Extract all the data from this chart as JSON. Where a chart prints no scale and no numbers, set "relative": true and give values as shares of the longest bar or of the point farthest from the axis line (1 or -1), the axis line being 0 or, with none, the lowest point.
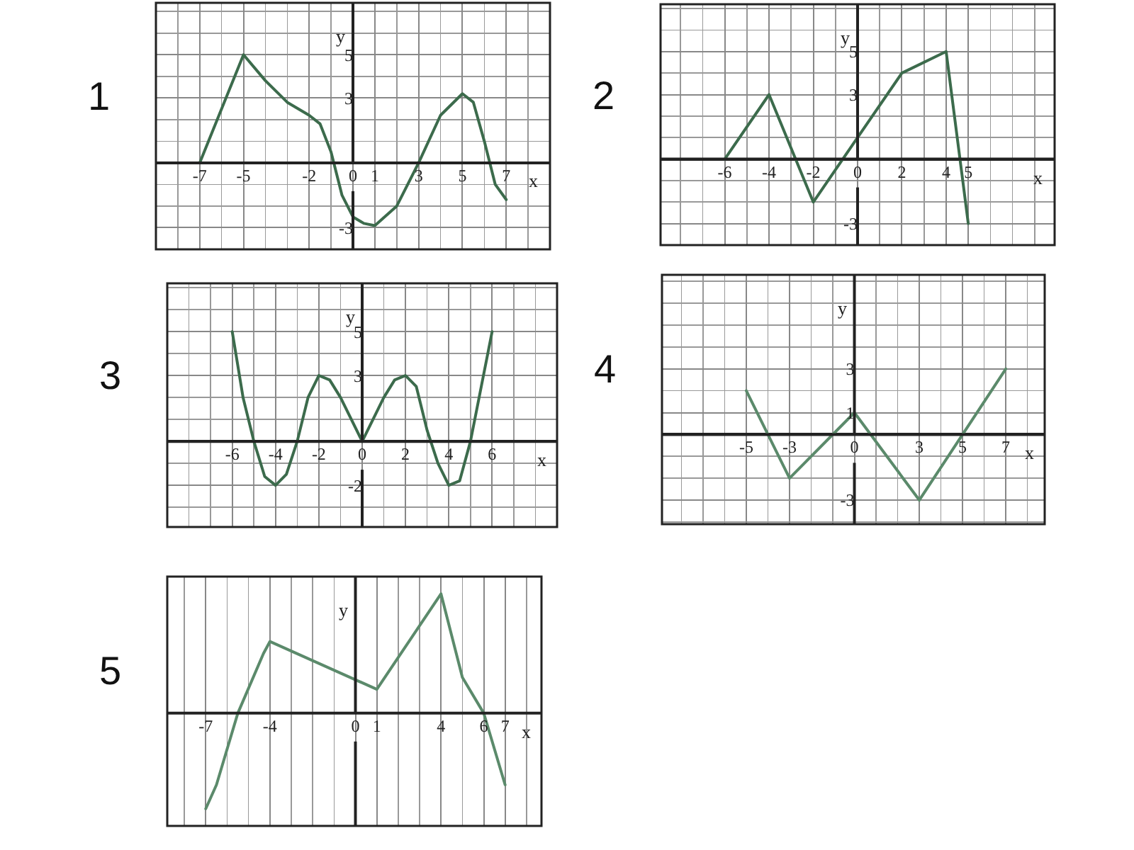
{
  "chart_data": [
    {
      "type": "line",
      "title": "1",
      "xlabel": "x",
      "ylabel": "y",
      "grid": true,
      "color": "#3c6b4c",
      "xlim": [
        -9,
        9
      ],
      "ylim": [
        -4,
        7.4
      ],
      "xticks": [
        -7,
        -5,
        -2,
        0,
        1,
        3,
        5,
        7
      ],
      "yticks": [
        -3,
        3,
        5
      ],
      "x": [
        -7,
        -5,
        -4,
        -3,
        -2,
        -1.5,
        -1,
        -0.5,
        0,
        0.5,
        1,
        2,
        3,
        4,
        5,
        5.5,
        6,
        6.5,
        7
      ],
      "values": [
        0,
        5,
        3.8,
        2.8,
        2.2,
        1.8,
        0.5,
        -1.5,
        -2.5,
        -2.8,
        -2.9,
        -2,
        0,
        2.2,
        3.2,
        2.8,
        1,
        -1,
        -1.7
      ]
    },
    {
      "type": "line",
      "title": "2",
      "xlabel": "x",
      "ylabel": "y",
      "grid": true,
      "color": "#3c6b4c",
      "xlim": [
        -8.9,
        8.9
      ],
      "ylim": [
        -4,
        7.2
      ],
      "xticks": [
        -6,
        -4,
        -2,
        0,
        2,
        4,
        5
      ],
      "yticks": [
        -3,
        3,
        5
      ],
      "x": [
        -6,
        -4,
        -2,
        0,
        2,
        4,
        5
      ],
      "values": [
        0,
        3,
        -2,
        1,
        4,
        5,
        -3
      ]
    },
    {
      "type": "line",
      "title": "3",
      "xlabel": "x",
      "ylabel": "y",
      "grid": true,
      "color": "#3c6b4c",
      "xlim": [
        -9,
        9
      ],
      "ylim": [
        -3.9,
        7.2
      ],
      "xticks": [
        -6,
        -4,
        -2,
        0,
        2,
        4,
        6
      ],
      "yticks": [
        -2,
        3,
        5
      ],
      "x": [
        -6,
        -5.5,
        -5,
        -4.5,
        -4,
        -3.5,
        -3,
        -2.5,
        -2,
        -1.5,
        -1,
        0,
        1,
        1.5,
        2,
        2.5,
        3,
        3.5,
        4,
        4.5,
        5,
        5.5,
        6
      ],
      "values": [
        5,
        2,
        0,
        -1.6,
        -2,
        -1.5,
        0,
        2,
        3,
        2.8,
        2,
        0,
        2,
        2.8,
        3,
        2.5,
        0.5,
        -1,
        -2,
        -1.8,
        0,
        2.5,
        5
      ]
    },
    {
      "type": "line",
      "title": "4",
      "xlabel": "x",
      "ylabel": "y",
      "grid": true,
      "color": "#5b8a6b",
      "xlim": [
        -8.9,
        8.8
      ],
      "ylim": [
        -4.1,
        7.3
      ],
      "xticks": [
        -5,
        -3,
        0,
        3,
        5,
        7
      ],
      "yticks": [
        -3,
        1,
        3
      ],
      "x": [
        -5,
        -3,
        0,
        3,
        7
      ],
      "values": [
        2,
        -2,
        1,
        -3,
        3
      ]
    },
    {
      "type": "line",
      "title": "5",
      "xlabel": "x",
      "ylabel": "y",
      "grid": true,
      "relative": true,
      "color": "#5b8a6b",
      "xlim": [
        -8.8,
        8.7
      ],
      "xticks": [
        -7,
        -4,
        0,
        1,
        4,
        6,
        7
      ],
      "x": [
        -7,
        -6.5,
        -5.5,
        -4.3,
        -4,
        1,
        4,
        5,
        6,
        7
      ],
      "values": [
        -0.8,
        -0.6,
        0,
        0.5,
        0.6,
        0.2,
        1,
        0.3,
        0,
        -0.6
      ]
    }
  ]
}
